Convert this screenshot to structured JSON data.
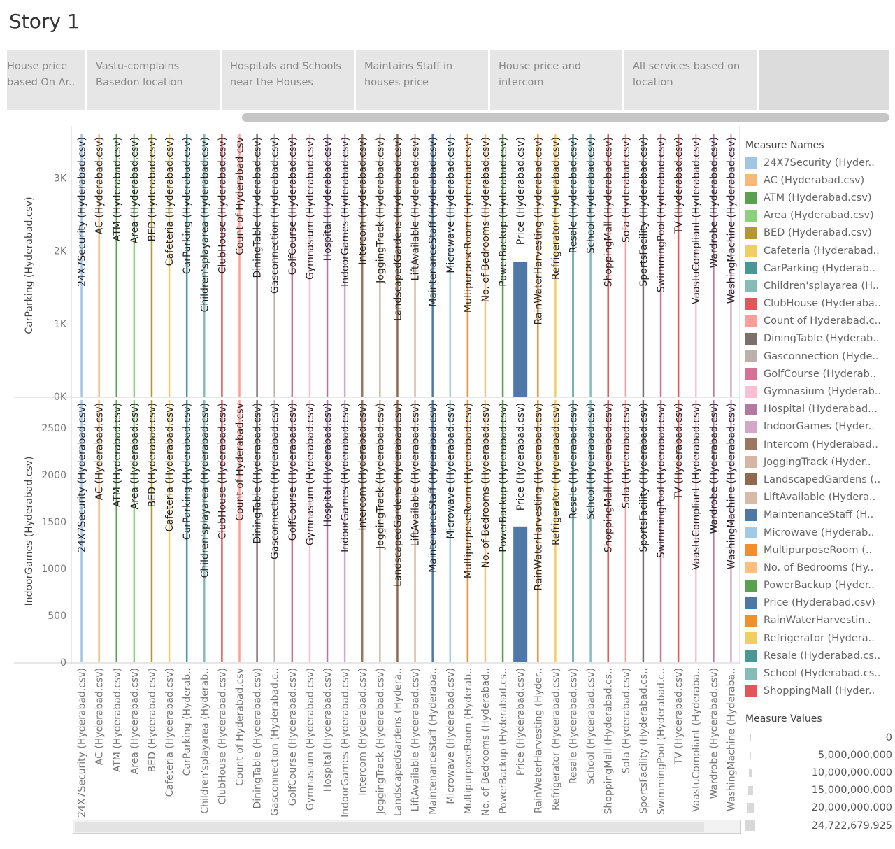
{
  "title": "Story 1",
  "tabs": [
    "House price\nbased On Ar..",
    "Vastu-complains\nBasedon location",
    "Hospitals and Schools\nnear the Houses",
    "Maintains Staff in\nhouses price",
    "House price and\nintercom",
    "All services based on\nlocation",
    ""
  ],
  "legend_title": "Measure Names",
  "legend": [
    {
      "label": "24X7Security (Hyder..",
      "color": "#a0c6e3"
    },
    {
      "label": "AC (Hyderabad.csv)",
      "color": "#f7b97a"
    },
    {
      "label": "ATM (Hyderabad.csv)",
      "color": "#59a14f"
    },
    {
      "label": "Area (Hyderabad.csv)",
      "color": "#8cd17d"
    },
    {
      "label": "BED (Hyderabad.csv)",
      "color": "#b6992d"
    },
    {
      "label": "Cafeteria (Hyderabad..",
      "color": "#f1ce63"
    },
    {
      "label": "CarParking (Hyderab..",
      "color": "#499894"
    },
    {
      "label": "Children'splayarea (H..",
      "color": "#86bcb6"
    },
    {
      "label": "ClubHouse (Hyderaba..",
      "color": "#e15759"
    },
    {
      "label": "Count of Hyderabad.c..",
      "color": "#ff9d9a"
    },
    {
      "label": "DiningTable (Hyderab..",
      "color": "#79706e"
    },
    {
      "label": "Gasconnection (Hyde..",
      "color": "#bab0ac"
    },
    {
      "label": "GolfCourse (Hyderab..",
      "color": "#d37295"
    },
    {
      "label": "Gymnasium (Hyderab..",
      "color": "#fabfd2"
    },
    {
      "label": "Hospital (Hyderabad...",
      "color": "#b07aa1"
    },
    {
      "label": "IndoorGames (Hyder..",
      "color": "#d4a6c8"
    },
    {
      "label": "Intercom (Hyderabad..",
      "color": "#9d7660"
    },
    {
      "label": "JoggingTrack (Hyder..",
      "color": "#d7b5a6"
    },
    {
      "label": "LandscapedGardens (..",
      "color": "#8f6a4e"
    },
    {
      "label": "LiftAvailable (Hydera..",
      "color": "#d9b9a8"
    },
    {
      "label": "MaintenanceStaff (H..",
      "color": "#4e79a7"
    },
    {
      "label": "Microwave (Hyderab..",
      "color": "#a0cbe8"
    },
    {
      "label": "MultipurposeRoom (..",
      "color": "#f28e2b"
    },
    {
      "label": "No. of Bedrooms (Hy..",
      "color": "#ffbe7d"
    },
    {
      "label": "PowerBackup (Hyder..",
      "color": "#59a14f"
    },
    {
      "label": "Price (Hyderabad.csv)",
      "color": "#4e79a7"
    },
    {
      "label": "RainWaterHarvestin..",
      "color": "#f28e2b"
    },
    {
      "label": "Refrigerator (Hydera..",
      "color": "#f1ce63"
    },
    {
      "label": "Resale (Hyderabad.cs..",
      "color": "#499894"
    },
    {
      "label": "School (Hyderabad.cs..",
      "color": "#86bcb6"
    },
    {
      "label": "ShoppingMall (Hyder..",
      "color": "#e15759"
    }
  ],
  "measure_values_title": "Measure Values",
  "measure_values": [
    "0",
    "5,000,000,000",
    "10,000,000,000",
    "15,000,000,000",
    "20,000,000,000",
    "24,722,679,925"
  ],
  "chart_data": {
    "type": "bar",
    "categories": [
      "24X7Security (Hyderabad.csv)",
      "AC (Hyderabad.csv)",
      "ATM (Hyderabad.csv)",
      "Area (Hyderabad.csv)",
      "BED (Hyderabad.csv)",
      "Cafeteria (Hyderabad.csv)",
      "CarParking (Hyderabad.csv)",
      "Children'splayarea (Hyderabad.csv)",
      "ClubHouse (Hyderabad.csv)",
      "Count of Hyderabad.csv",
      "DiningTable (Hyderabad.csv)",
      "Gasconnection (Hyderabad.csv)",
      "GolfCourse (Hyderabad.csv)",
      "Gymnasium (Hyderabad.csv)",
      "Hospital (Hyderabad.csv)",
      "IndoorGames (Hyderabad.csv)",
      "Intercom (Hyderabad.csv)",
      "JoggingTrack (Hyderabad.csv)",
      "LandscapedGardens (Hyderabad.csv)",
      "LiftAvailable (Hyderabad.csv)",
      "MaintenanceStaff (Hyderabad.csv)",
      "Microwave (Hyderabad.csv)",
      "MultipurposeRoom (Hyderabad.csv)",
      "No. of Bedrooms (Hyderabad.csv)",
      "PowerBackup (Hyderabad.csv)",
      "Price (Hyderabad.csv)",
      "RainWaterHarvesting (Hyderabad.csv)",
      "Refrigerator (Hyderabad.csv)",
      "Resale (Hyderabad.csv)",
      "School (Hyderabad.csv)",
      "ShoppingMall (Hyderabad.csv)",
      "Sofa (Hyderabad.csv)",
      "SportsFacility (Hyderabad.csv)",
      "SwimmingPool (Hyderabad.csv)",
      "TV (Hyderabad.csv)",
      "VaastuCompliant (Hyderabad.csv)",
      "Wardrobe (Hyderabad.csv)",
      "WashingMachine (Hyderabad.csv)"
    ],
    "x_tick_labels": [
      "24X7Security (Hyderabad.csv)",
      "AC (Hyderabad.csv)",
      "ATM (Hyderabad.csv)",
      "Area (Hyderabad.csv)",
      "BED (Hyderabad.csv)",
      "Cafeteria (Hyderabad.csv)",
      "CarParking (Hyderab..",
      "Children'splayarea (Hyderab..",
      "ClubHouse (Hyderabad.csv)",
      "Count of Hyderabad.csv",
      "DiningTable (Hyderabad.csv)",
      "Gasconnection (Hyderabad.c..",
      "GolfCourse (Hyderabad.csv)",
      "Gymnasium (Hyderabad.csv)",
      "Hospital (Hyderabad.csv)",
      "IndoorGames (Hyderabad.csv)",
      "Intercom (Hyderabad.csv)",
      "JoggingTrack (Hyderabad.csv)",
      "LandscapedGardens (Hydera..",
      "LiftAvailable (Hyderabad.csv)",
      "MaintenanceStaff (Hyderaba..",
      "Microwave (Hyderabad.csv)",
      "MultipurposeRoom (Hyderab..",
      "No. of Bedrooms (Hyderabad..",
      "PowerBackup (Hyderabad.cs..",
      "Price (Hyderabad.csv)",
      "RainWaterHarvesting (Hyder..",
      "Refrigerator (Hyderabad.csv)",
      "Resale (Hyderabad.csv)",
      "School (Hyderabad.csv)",
      "ShoppingMall (Hyderabad.cs..",
      "Sofa (Hyderabad.csv)",
      "SportsFacility (Hyderabad.cs..",
      "SwimmingPool (Hyderabad.c..",
      "TV (Hyderabad.csv)",
      "VaastuCompliant (Hyderaba..",
      "Wardrobe (Hyderabad.csv)",
      "WashingMachine (Hyderaba.."
    ],
    "colors": [
      "#a0c6e3",
      "#f7b97a",
      "#59a14f",
      "#8cd17d",
      "#b6992d",
      "#f1ce63",
      "#499894",
      "#86bcb6",
      "#e15759",
      "#ff9d9a",
      "#79706e",
      "#bab0ac",
      "#d37295",
      "#fabfd2",
      "#b07aa1",
      "#d4a6c8",
      "#9d7660",
      "#d7b5a6",
      "#8f6a4e",
      "#d9b9a8",
      "#4e79a7",
      "#a0cbe8",
      "#f28e2b",
      "#ffbe7d",
      "#59a14f",
      "#4e79a7",
      "#f28e2b",
      "#f1ce63",
      "#499894",
      "#86bcb6",
      "#e15759",
      "#ff9d9a",
      "#79706e",
      "#d37295",
      "#e15759",
      "#fabfd2",
      "#b07aa1",
      "#d4a6c8"
    ],
    "panels": [
      {
        "ylabel": "CarParking (Hyderabad.csv)",
        "ylim": [
          0,
          3600
        ],
        "yticks": [
          0,
          1000,
          2000,
          3000
        ],
        "ytick_labels": [
          "0K",
          "1K",
          "2K",
          "3K"
        ],
        "values": [
          3600,
          3600,
          3600,
          3600,
          3600,
          3600,
          3600,
          3600,
          3600,
          3600,
          3600,
          3600,
          3600,
          3600,
          3600,
          3600,
          3600,
          3600,
          3600,
          3600,
          3600,
          3600,
          3600,
          3600,
          3600,
          1850,
          3600,
          3600,
          3600,
          3600,
          3600,
          3600,
          3600,
          3600,
          3600,
          3600,
          3600,
          3600
        ]
      },
      {
        "ylabel": "IndoorGames (Hyderabad.csv)",
        "ylim": [
          0,
          2800
        ],
        "yticks": [
          0,
          500,
          1000,
          1500,
          2000,
          2500
        ],
        "ytick_labels": [
          "0",
          "500",
          "1000",
          "1500",
          "2000",
          "2500"
        ],
        "values": [
          2800,
          2800,
          2800,
          2800,
          2800,
          2800,
          2800,
          2800,
          2800,
          2800,
          2800,
          2800,
          2800,
          2800,
          2800,
          2800,
          2800,
          2800,
          2800,
          2800,
          2800,
          2800,
          2800,
          2800,
          2800,
          1450,
          2800,
          2800,
          2800,
          2800,
          2800,
          2800,
          2800,
          2800,
          2800,
          2800,
          2800,
          2800
        ]
      }
    ],
    "bar_size_values": [
      0,
      0,
      0,
      0,
      0,
      0,
      0,
      0,
      0,
      0,
      0,
      0,
      0,
      0,
      0,
      0,
      0,
      0,
      0,
      0,
      0,
      0,
      0,
      0,
      0,
      24722679925,
      0,
      0,
      0,
      0,
      0,
      0,
      0,
      0,
      0,
      0,
      0,
      0
    ],
    "legend_placement": "right"
  }
}
